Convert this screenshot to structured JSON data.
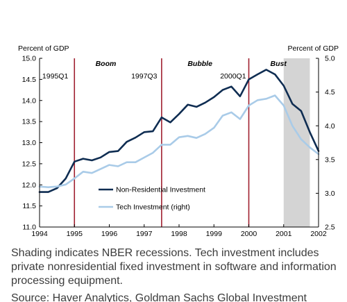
{
  "chart_data": {
    "type": "line",
    "left_axis": {
      "label": "Percent of GDP",
      "min": 11.0,
      "max": 15.0,
      "ticks": [
        "11.0",
        "11.5",
        "12.0",
        "12.5",
        "13.0",
        "13.5",
        "14.0",
        "14.5",
        "15.0"
      ]
    },
    "right_axis": {
      "label": "Percent of GDP",
      "min": 2.5,
      "max": 5.0,
      "ticks": [
        "2.5",
        "3.0",
        "3.5",
        "4.0",
        "4.5",
        "5.0"
      ]
    },
    "x_axis": {
      "min": 1994,
      "max": 2002,
      "ticks": [
        "1994",
        "1995",
        "1996",
        "1997",
        "1998",
        "1999",
        "2000",
        "2001",
        "2002"
      ]
    },
    "grid": false,
    "recession_shading": {
      "start": 2001.0,
      "end": 2001.75
    },
    "vertical_lines": [
      1995.0,
      1997.5,
      2000.0
    ],
    "events": [
      "1995Q1",
      "1997Q3",
      "2000Q1"
    ],
    "periods": [
      "Boom",
      "Bubble",
      "Bust"
    ],
    "legend_position": "center",
    "series": [
      {
        "name": "Non-Residential Investment",
        "axis": "left",
        "color": "#0f2d52",
        "x": [
          1994.0,
          1994.25,
          1994.5,
          1994.75,
          1995.0,
          1995.25,
          1995.5,
          1995.75,
          1996.0,
          1996.25,
          1996.5,
          1996.75,
          1997.0,
          1997.25,
          1997.5,
          1997.75,
          1998.0,
          1998.25,
          1998.5,
          1998.75,
          1999.0,
          1999.25,
          1999.5,
          1999.75,
          2000.0,
          2000.25,
          2000.5,
          2000.75,
          2001.0,
          2001.25,
          2001.5,
          2001.75,
          2002.0
        ],
        "values": [
          11.83,
          11.83,
          11.92,
          12.15,
          12.55,
          12.62,
          12.58,
          12.65,
          12.78,
          12.8,
          13.02,
          13.12,
          13.25,
          13.27,
          13.6,
          13.48,
          13.68,
          13.9,
          13.85,
          13.95,
          14.08,
          14.25,
          14.33,
          14.1,
          14.5,
          14.62,
          14.73,
          14.62,
          14.35,
          13.92,
          13.75,
          13.25,
          12.8
        ]
      },
      {
        "name": "Tech Investment (right)",
        "axis": "right",
        "color": "#a9cbe8",
        "x": [
          1994.0,
          1994.25,
          1994.5,
          1994.75,
          1995.0,
          1995.25,
          1995.5,
          1995.75,
          1996.0,
          1996.25,
          1996.5,
          1996.75,
          1997.0,
          1997.25,
          1997.5,
          1997.75,
          1998.0,
          1998.25,
          1998.5,
          1998.75,
          1999.0,
          1999.25,
          1999.5,
          1999.75,
          2000.0,
          2000.25,
          2000.5,
          2000.75,
          2001.0,
          2001.25,
          2001.5,
          2001.75,
          2002.0
        ],
        "values": [
          3.1,
          3.09,
          3.1,
          3.13,
          3.22,
          3.32,
          3.3,
          3.36,
          3.42,
          3.4,
          3.46,
          3.46,
          3.53,
          3.6,
          3.72,
          3.72,
          3.83,
          3.85,
          3.82,
          3.88,
          3.97,
          4.15,
          4.2,
          4.1,
          4.3,
          4.38,
          4.4,
          4.45,
          4.3,
          4.0,
          3.8,
          3.68,
          3.58
        ]
      }
    ]
  },
  "caption": "Shading indicates NBER recessions. Tech investment includes private nonresidential fixed investment in software and information processing equipment.",
  "source": "Source: Haver Analytics, Goldman Sachs Global Investment"
}
